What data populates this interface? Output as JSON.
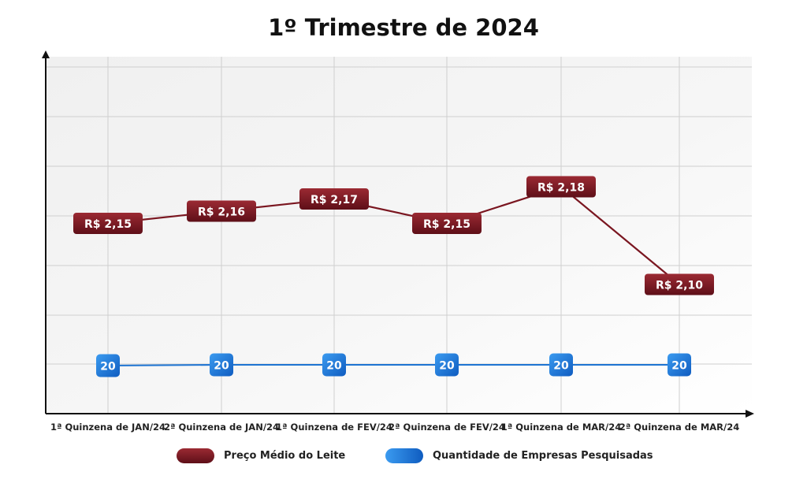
{
  "chart_data": {
    "type": "line",
    "title": "1º Trimestre de 2024",
    "categories": [
      "1ª Quinzena de JAN/24",
      "2ª Quinzena de JAN/24",
      "1ª Quinzena de FEV/24",
      "2ª Quinzena de FEV/24",
      "1ª Quinzena de MAR/24",
      "2ª Quinzena de MAR/24"
    ],
    "series": [
      {
        "name": "Preço Médio do Leite",
        "values": [
          2.15,
          2.16,
          2.17,
          2.15,
          2.18,
          2.1
        ],
        "labels": [
          "R$ 2,15",
          "R$ 2,16",
          "R$ 2,17",
          "R$ 2,15",
          "R$ 2,18",
          "R$ 2,10"
        ],
        "color": "#7a1620"
      },
      {
        "name": "Quantidade de Empresas Pesquisadas",
        "values": [
          20,
          20,
          20,
          20,
          20,
          20
        ],
        "labels": [
          "20",
          "20",
          "20",
          "20",
          "20",
          "20"
        ],
        "color": "#1e74d2"
      }
    ],
    "grid": true,
    "legend_position": "bottom"
  }
}
